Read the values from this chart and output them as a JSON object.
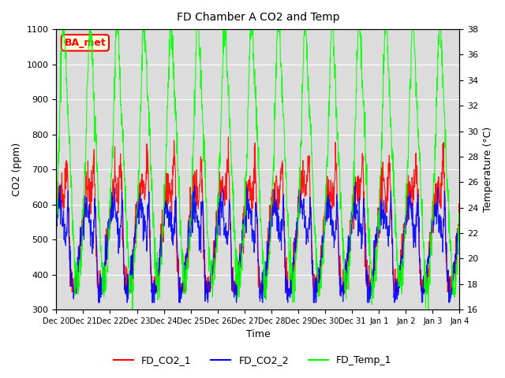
{
  "title": "FD Chamber A CO2 and Temp",
  "xlabel": "Time",
  "ylabel_left": "CO2 (ppm)",
  "ylabel_right": "Temperature (°C)",
  "ylim_left": [
    300,
    1100
  ],
  "ylim_right": [
    16,
    38
  ],
  "yticks_left": [
    300,
    400,
    500,
    600,
    700,
    800,
    900,
    1000,
    1100
  ],
  "yticks_right": [
    16,
    18,
    20,
    22,
    24,
    26,
    28,
    30,
    32,
    34,
    36,
    38
  ],
  "xtick_positions": [
    0,
    1,
    2,
    3,
    4,
    5,
    6,
    7,
    8,
    9,
    10,
    11,
    12,
    13,
    14,
    15
  ],
  "xtick_labels": [
    "Dec 20",
    "Dec 21",
    "Dec 22",
    "Dec 23",
    "Dec 24",
    "Dec 25",
    "Dec 26",
    "Dec 27",
    "Dec 28",
    "Dec 29",
    "Dec 30",
    "Dec 31",
    "Jan 1",
    "Jan 2",
    "Jan 3",
    "Jan 4"
  ],
  "legend_labels": [
    "FD_CO2_1",
    "FD_CO2_2",
    "FD_Temp_1"
  ],
  "legend_colors": [
    "red",
    "blue",
    "lime"
  ],
  "annotation_text": "BA_met",
  "annotation_color": "red",
  "annotation_bg": "lightyellow",
  "plot_bg": "#dcdcdc",
  "xlim": [
    0,
    15
  ]
}
